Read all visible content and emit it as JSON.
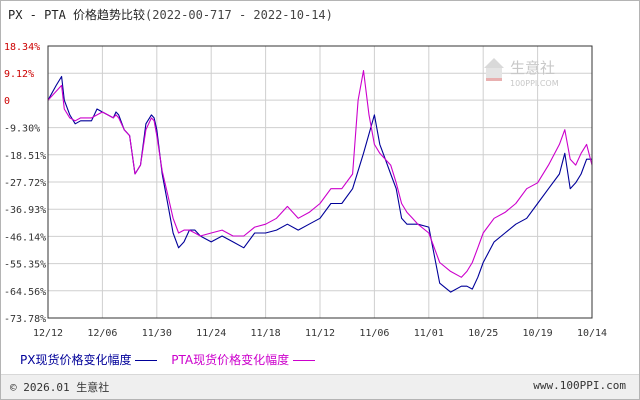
{
  "header": {
    "title": "PX - PTA 价格趋势比较",
    "date_range": "(2022-00-717 - 2022-10-14)"
  },
  "watermark": {
    "name": "生意社",
    "url": "100PPI.COM"
  },
  "legend": [
    {
      "label": "PX现货价格变化幅度",
      "color": "#000099"
    },
    {
      "label": "PTA现货价格变化幅度",
      "color": "#cc00cc"
    }
  ],
  "footer": {
    "copyright": "© 2026.01 生意社",
    "site": "www.100PPI.com"
  },
  "chart_data": {
    "type": "line",
    "ytick_labels": [
      "18.34%",
      "9.12%",
      "0",
      "-9.30%",
      "-18.51%",
      "-27.72%",
      "-36.93%",
      "-46.14%",
      "-55.35%",
      "-64.56%",
      "-73.78%"
    ],
    "ytick_values": [
      18.34,
      9.12,
      0,
      -9.3,
      -18.51,
      -27.72,
      -36.93,
      -46.14,
      -55.35,
      -64.56,
      -73.78
    ],
    "xtick_labels": [
      "12/12",
      "12/06",
      "11/30",
      "11/24",
      "11/18",
      "11/12",
      "11/06",
      "11/01",
      "10/25",
      "10/19",
      "10/14"
    ],
    "ylim": [
      -73.78,
      18.34
    ],
    "xlim": [
      0,
      100
    ],
    "grid": true,
    "legend_position": "bottom",
    "series": [
      {
        "name": "PX现货价格变化幅度",
        "color": "#000099",
        "x": [
          0,
          1.5,
          2.5,
          3,
          4,
          5,
          6,
          8,
          9,
          10,
          11,
          12,
          12.5,
          13,
          14,
          15,
          16,
          17,
          18,
          19,
          19.5,
          20,
          21,
          22,
          23,
          24,
          25,
          26,
          27,
          28,
          30,
          32,
          34,
          36,
          38,
          40,
          42,
          44,
          46,
          48,
          50,
          52,
          54,
          56,
          58,
          60,
          61,
          62,
          63,
          64,
          65,
          66,
          67,
          68,
          70,
          72,
          74,
          76,
          77,
          78,
          79,
          80,
          82,
          84,
          86,
          88,
          90,
          92,
          94,
          95,
          96,
          97,
          98,
          99,
          100
        ],
        "y": [
          0,
          5,
          8,
          0,
          -5,
          -8,
          -7,
          -7,
          -3,
          -4,
          -5,
          -6,
          -4,
          -5,
          -10,
          -12,
          -25,
          -22,
          -8,
          -5,
          -6,
          -10,
          -25,
          -35,
          -45,
          -50,
          -48,
          -44,
          -44,
          -46,
          -48,
          -46,
          -48,
          -50,
          -45,
          -45,
          -44,
          -42,
          -44,
          -42,
          -40,
          -35,
          -35,
          -30,
          -18,
          -5,
          -15,
          -20,
          -25,
          -30,
          -40,
          -42,
          -42,
          -42,
          -43,
          -62,
          -65,
          -63,
          -63,
          -64,
          -60,
          -55,
          -48,
          -45,
          -42,
          -40,
          -35,
          -30,
          -25,
          -18,
          -30,
          -28,
          -25,
          -20,
          -20
        ]
      },
      {
        "name": "PTA现货价格变化幅度",
        "color": "#cc00cc",
        "x": [
          0,
          1.5,
          2.5,
          3,
          4,
          5,
          6,
          8,
          9,
          10,
          11,
          12,
          12.5,
          13,
          14,
          15,
          16,
          17,
          18,
          19,
          19.5,
          20,
          21,
          22,
          23,
          24,
          25,
          26,
          27,
          28,
          30,
          32,
          34,
          36,
          38,
          40,
          42,
          44,
          46,
          48,
          50,
          52,
          54,
          56,
          57,
          58,
          59,
          60,
          61,
          62,
          63,
          64,
          65,
          66,
          67,
          68,
          70,
          72,
          74,
          76,
          77,
          78,
          79,
          80,
          82,
          84,
          86,
          88,
          90,
          92,
          94,
          95,
          96,
          97,
          98,
          99,
          100
        ],
        "y": [
          0,
          3,
          5,
          -3,
          -6,
          -7,
          -6,
          -6,
          -5,
          -4,
          -5,
          -6,
          -5,
          -6,
          -10,
          -12,
          -25,
          -22,
          -10,
          -6,
          -7,
          -12,
          -24,
          -32,
          -40,
          -45,
          -44,
          -44,
          -45,
          -46,
          -45,
          -44,
          -46,
          -46,
          -43,
          -42,
          -40,
          -36,
          -40,
          -38,
          -35,
          -30,
          -30,
          -25,
          0,
          10,
          -5,
          -15,
          -18,
          -20,
          -22,
          -28,
          -35,
          -38,
          -40,
          -42,
          -45,
          -55,
          -58,
          -60,
          -58,
          -55,
          -50,
          -45,
          -40,
          -38,
          -35,
          -30,
          -28,
          -22,
          -15,
          -10,
          -20,
          -22,
          -18,
          -15,
          -22
        ]
      }
    ]
  }
}
